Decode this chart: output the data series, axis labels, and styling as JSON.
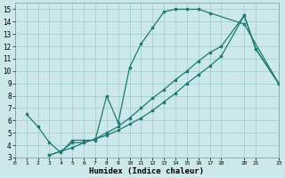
{
  "xlabel": "Humidex (Indice chaleur)",
  "bg_color": "#cce8ea",
  "grid_color": "#a8d0d3",
  "line_color": "#1e7a72",
  "xlim": [
    0,
    23
  ],
  "ylim": [
    3,
    15.5
  ],
  "xtick_vals": [
    0,
    1,
    2,
    3,
    4,
    5,
    6,
    7,
    8,
    9,
    10,
    11,
    12,
    13,
    14,
    15,
    16,
    17,
    18,
    20,
    21,
    23
  ],
  "xtick_labels": [
    "0",
    "1",
    "2",
    "3",
    "4",
    "5",
    "6",
    "7",
    "8",
    "9",
    "10",
    "11",
    "12",
    "13",
    "14",
    "15",
    "16",
    "17",
    "18",
    "20",
    "21",
    "23"
  ],
  "ytick_vals": [
    3,
    4,
    5,
    6,
    7,
    8,
    9,
    10,
    11,
    12,
    13,
    14,
    15
  ],
  "ytick_labels": [
    "3",
    "4",
    "5",
    "6",
    "7",
    "8",
    "9",
    "10",
    "11",
    "12",
    "13",
    "14",
    "15"
  ],
  "curve1_x": [
    1,
    2,
    3,
    4,
    5,
    6,
    7,
    8,
    9,
    10,
    11,
    12,
    13,
    14,
    15,
    16,
    17,
    20,
    23
  ],
  "curve1_y": [
    6.5,
    5.5,
    4.2,
    3.4,
    4.4,
    4.4,
    4.4,
    8.0,
    5.8,
    10.3,
    12.2,
    13.5,
    14.8,
    15.0,
    15.0,
    15.0,
    14.7,
    13.8,
    9.0
  ],
  "curve2_x": [
    3,
    4,
    5,
    6,
    7,
    8,
    9,
    10,
    11,
    12,
    13,
    14,
    15,
    16,
    17,
    18,
    20,
    21,
    23
  ],
  "curve2_y": [
    3.2,
    3.5,
    3.8,
    4.2,
    4.5,
    4.8,
    5.2,
    5.7,
    6.2,
    6.8,
    7.5,
    8.2,
    9.0,
    9.7,
    10.4,
    11.2,
    14.5,
    11.8,
    9.0
  ],
  "curve3_x": [
    3,
    4,
    5,
    6,
    7,
    8,
    9,
    10,
    11,
    12,
    13,
    14,
    15,
    16,
    17,
    18,
    20,
    21,
    23
  ],
  "curve3_y": [
    3.2,
    3.5,
    4.2,
    4.2,
    4.5,
    5.0,
    5.5,
    6.2,
    7.0,
    7.8,
    8.5,
    9.3,
    10.0,
    10.8,
    11.5,
    12.0,
    14.5,
    11.8,
    9.0
  ]
}
